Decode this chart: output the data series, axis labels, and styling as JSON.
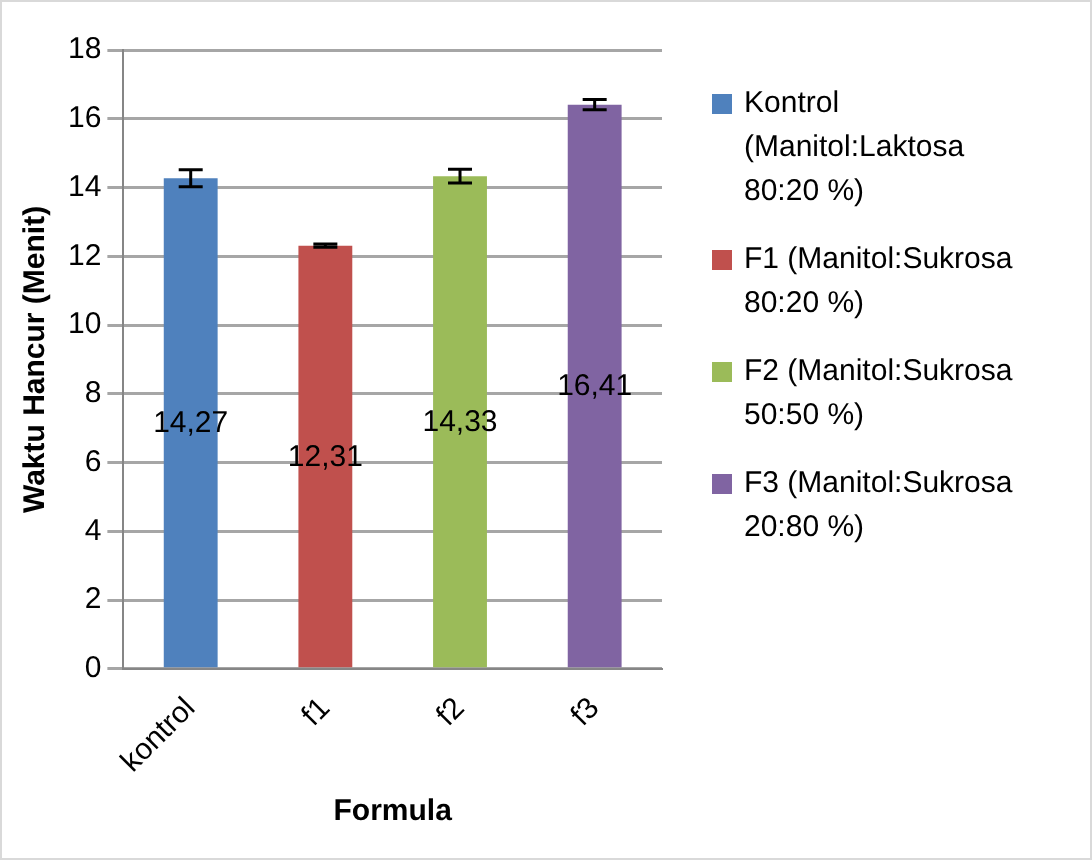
{
  "chart_data": {
    "type": "bar",
    "xlabel": "Formula",
    "ylabel": "Waktu Hancur (Menit)",
    "categories": [
      "kontrol",
      "f1",
      "f2",
      "f3"
    ],
    "series": [
      {
        "name": "Kontrol (Manitol:Laktosa 80:20 %)",
        "color": "#4f81bd",
        "values": [
          14.27,
          null,
          null,
          null
        ],
        "errors": [
          0.25,
          null,
          null,
          null
        ],
        "value_labels": [
          "14,27",
          null,
          null,
          null
        ]
      },
      {
        "name": "F1 (Manitol:Sukrosa 80:20 %)",
        "color": "#c0504d",
        "values": [
          null,
          12.31,
          null,
          null
        ],
        "errors": [
          null,
          0.05,
          null,
          null
        ],
        "value_labels": [
          null,
          "12,31",
          null,
          null
        ]
      },
      {
        "name": "F2 (Manitol:Sukrosa 50:50 %)",
        "color": "#9bbb59",
        "values": [
          null,
          null,
          14.33,
          null
        ],
        "errors": [
          null,
          null,
          0.2,
          null
        ],
        "value_labels": [
          null,
          null,
          "14,33",
          null
        ]
      },
      {
        "name": "F3 (Manitol:Sukrosa 20:80 %)",
        "color": "#8064a2",
        "values": [
          null,
          null,
          null,
          16.41
        ],
        "errors": [
          null,
          null,
          null,
          0.15
        ],
        "value_labels": [
          null,
          null,
          null,
          "16,41"
        ]
      }
    ],
    "ylim": [
      0,
      18
    ],
    "yticks": [
      0,
      2,
      4,
      6,
      8,
      10,
      12,
      14,
      16,
      18
    ],
    "grid": "y",
    "legend": "right"
  }
}
